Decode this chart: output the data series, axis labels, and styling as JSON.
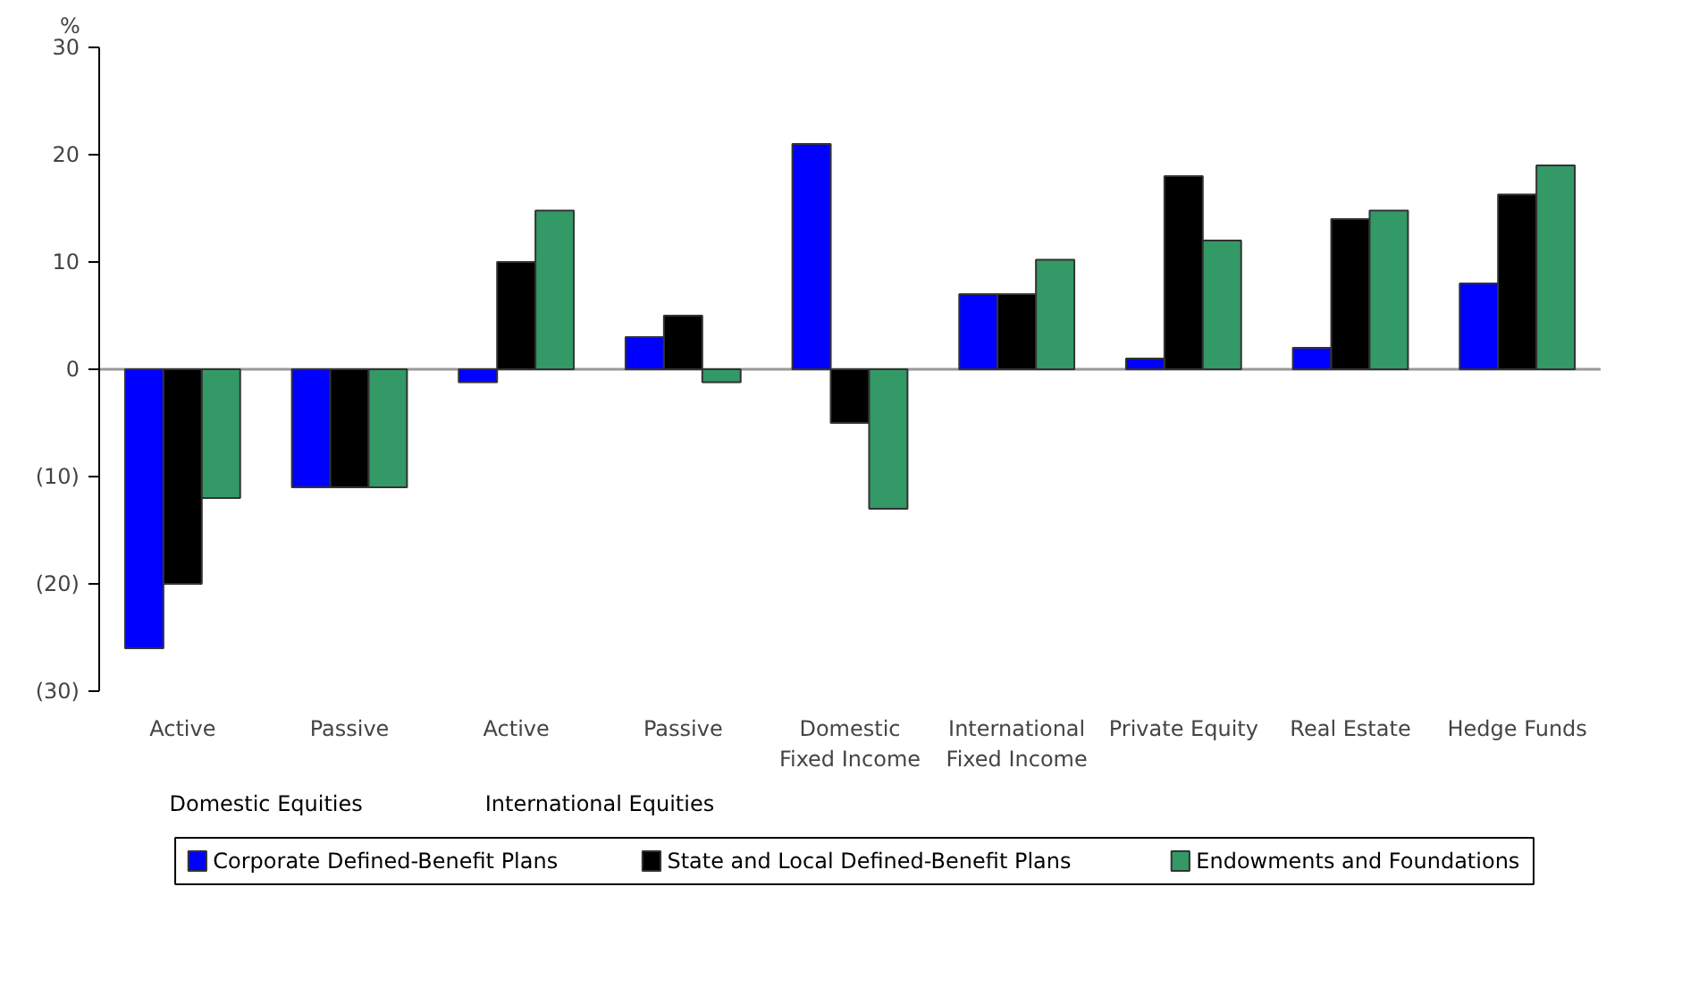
{
  "chart_data": {
    "type": "bar",
    "ylabel": "%",
    "categories": [
      "Active",
      "Passive",
      "Active",
      "Passive",
      "Domestic\nFixed Income",
      "International\nFixed Income",
      "Private Equity",
      "Real Estate",
      "Hedge Funds"
    ],
    "series": [
      {
        "name": "Corporate Defined-Benefit Plans",
        "color": "#0000ff",
        "values": [
          -26,
          -11,
          -1.2,
          3,
          21,
          7,
          1,
          2,
          8
        ]
      },
      {
        "name": "State and Local Defined-Benefit Plans",
        "color": "#000000",
        "values": [
          -20,
          -11,
          10,
          5,
          -5,
          7,
          18,
          14,
          16.3
        ]
      },
      {
        "name": "Endowments and Foundations",
        "color": "#339966",
        "values": [
          -12,
          -11,
          14.8,
          -1.2,
          -13,
          10.2,
          12,
          14.8,
          19
        ]
      }
    ],
    "ylim": [
      -30,
      30
    ],
    "yticks": [
      {
        "value": -30,
        "label": "(30)"
      },
      {
        "value": -20,
        "label": "(20)"
      },
      {
        "value": -10,
        "label": "(10)"
      },
      0,
      10,
      20,
      30
    ],
    "ref_lines": [
      {
        "axis": "y",
        "value": 0,
        "label": null,
        "color": "#999999"
      }
    ],
    "annotations": [
      "Domestic Equities",
      "International Equities"
    ],
    "grid": false,
    "legend": "bottom"
  }
}
